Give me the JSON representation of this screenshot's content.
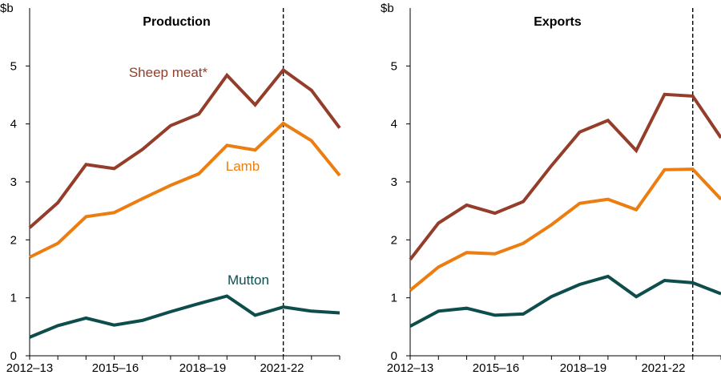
{
  "chart_data": [
    {
      "type": "line",
      "title": "Production",
      "ylabel": "$b",
      "ylim": [
        0,
        6
      ],
      "yticks": [
        0,
        1,
        2,
        3,
        4,
        5
      ],
      "x_tick_labels": [
        "2012–13",
        "2015–16",
        "2018–19",
        "2021-22"
      ],
      "x": [
        "2012–13",
        "2013–14",
        "2014–15",
        "2015–16",
        "2016–17",
        "2017–18",
        "2018–19",
        "2019–20",
        "2020–21",
        "2021–22",
        "2022–23",
        "2023–24"
      ],
      "forecast_start": "2021–22",
      "series": [
        {
          "name": "Sheep meat*",
          "color": "#943D2A",
          "values": [
            2.21,
            2.64,
            3.3,
            3.23,
            3.56,
            3.97,
            4.17,
            4.84,
            4.33,
            4.93,
            4.58,
            3.93
          ]
        },
        {
          "name": "Lamb",
          "color": "#EC7D10",
          "values": [
            1.7,
            1.94,
            2.4,
            2.47,
            2.71,
            2.94,
            3.14,
            3.63,
            3.55,
            4.01,
            3.71,
            3.11
          ]
        },
        {
          "name": "Mutton",
          "color": "#0D4D4B",
          "values": [
            0.32,
            0.52,
            0.65,
            0.53,
            0.61,
            0.76,
            0.9,
            1.03,
            0.7,
            0.84,
            0.77,
            0.74
          ]
        }
      ]
    },
    {
      "type": "line",
      "title": "Exports",
      "ylabel": "$b",
      "ylim": [
        0,
        6
      ],
      "yticks": [
        0,
        1,
        2,
        3,
        4,
        5
      ],
      "x_tick_labels": [
        "2012–13",
        "2015–16",
        "2018–19",
        "2021-22"
      ],
      "x": [
        "2012–13",
        "2013–14",
        "2014–15",
        "2015–16",
        "2016–17",
        "2017–18",
        "2018–19",
        "2019–20",
        "2020–21",
        "2021–22",
        "2022–23",
        "2023–24"
      ],
      "forecast_start": "2022–23",
      "series": [
        {
          "name": "Sheep meat*",
          "color": "#943D2A",
          "values": [
            1.66,
            2.29,
            2.6,
            2.46,
            2.66,
            3.28,
            3.86,
            4.06,
            3.54,
            4.51,
            4.48,
            3.76
          ]
        },
        {
          "name": "Lamb",
          "color": "#EC7D10",
          "values": [
            1.13,
            1.53,
            1.78,
            1.76,
            1.94,
            2.26,
            2.63,
            2.7,
            2.52,
            3.21,
            3.22,
            2.7
          ]
        },
        {
          "name": "Mutton",
          "color": "#0D4D4B",
          "values": [
            0.51,
            0.77,
            0.82,
            0.7,
            0.72,
            1.02,
            1.23,
            1.37,
            1.02,
            1.3,
            1.26,
            1.07
          ]
        }
      ]
    }
  ]
}
